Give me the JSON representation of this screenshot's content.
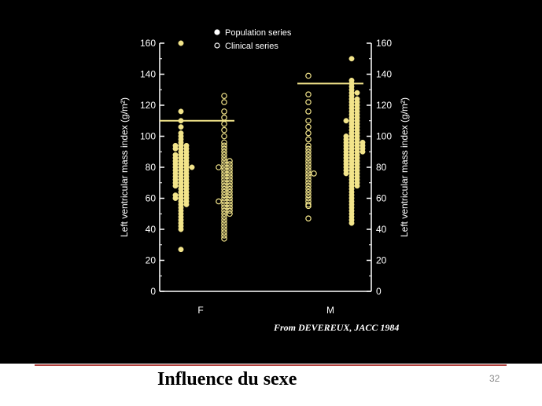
{
  "slide": {
    "title": "Influence du sexe",
    "page_number": "32",
    "credit": "From DEVEREUX, JACC 1984"
  },
  "colors": {
    "background": "#000000",
    "points": "#f2e48a",
    "reference_line": "#f2e48a",
    "axis": "#ffffff",
    "footer_rule": "#b0413e"
  },
  "chart_data": {
    "type": "scatter",
    "subtype": "dot-strip",
    "ylabel_left": "Left ventricular mass index (g/m²)",
    "ylabel_right": "Left ventricular mass index (g/m²)",
    "ylim": [
      0,
      160
    ],
    "yticks": [
      0,
      20,
      40,
      60,
      80,
      100,
      120,
      140,
      160
    ],
    "categories": [
      "F",
      "M"
    ],
    "legend": {
      "position": "top-center",
      "entries": [
        {
          "label": "Population series",
          "marker": "filled-circle"
        },
        {
          "label": "Clinical series",
          "marker": "open-circle"
        }
      ]
    },
    "reference_lines": [
      {
        "category": "F",
        "value": 110
      },
      {
        "category": "M",
        "value": 134
      }
    ],
    "series": [
      {
        "name": "Population series",
        "marker": "filled",
        "F": [
          160,
          116,
          110,
          106,
          102,
          100,
          98,
          96,
          94,
          94,
          94,
          92,
          92,
          92,
          90,
          90,
          88,
          88,
          88,
          86,
          86,
          86,
          84,
          84,
          84,
          82,
          82,
          82,
          80,
          80,
          80,
          80,
          78,
          78,
          78,
          76,
          76,
          76,
          74,
          74,
          74,
          72,
          72,
          72,
          70,
          70,
          70,
          68,
          68,
          68,
          66,
          66,
          64,
          64,
          62,
          62,
          62,
          60,
          60,
          60,
          58,
          58,
          56,
          56,
          54,
          52,
          50,
          48,
          46,
          44,
          42,
          40,
          27
        ],
        "M": [
          150,
          136,
          134,
          132,
          130,
          128,
          128,
          126,
          124,
          124,
          122,
          122,
          120,
          120,
          118,
          118,
          116,
          116,
          114,
          114,
          112,
          112,
          110,
          110,
          110,
          108,
          108,
          106,
          106,
          104,
          104,
          102,
          102,
          100,
          100,
          100,
          98,
          98,
          98,
          96,
          96,
          96,
          96,
          94,
          94,
          94,
          94,
          92,
          92,
          92,
          92,
          90,
          90,
          90,
          90,
          88,
          88,
          88,
          86,
          86,
          86,
          84,
          84,
          84,
          82,
          82,
          82,
          80,
          80,
          80,
          78,
          78,
          78,
          76,
          76,
          76,
          74,
          74,
          72,
          72,
          70,
          70,
          68,
          68,
          66,
          64,
          62,
          60,
          58,
          56,
          54,
          52,
          50,
          48,
          46,
          44
        ]
      },
      {
        "name": "Clinical series",
        "marker": "open",
        "F": [
          126,
          122,
          116,
          112,
          108,
          104,
          100,
          96,
          94,
          92,
          90,
          88,
          86,
          84,
          84,
          82,
          82,
          80,
          80,
          80,
          78,
          78,
          76,
          76,
          74,
          74,
          72,
          72,
          70,
          70,
          68,
          68,
          66,
          66,
          64,
          64,
          62,
          62,
          60,
          60,
          58,
          58,
          58,
          56,
          56,
          54,
          54,
          52,
          52,
          50,
          50,
          48,
          46,
          44,
          42,
          40,
          38,
          36,
          34
        ],
        "M": [
          139,
          127,
          122,
          116,
          110,
          106,
          102,
          98,
          94,
          92,
          90,
          88,
          86,
          84,
          82,
          80,
          78,
          76,
          76,
          74,
          72,
          70,
          68,
          66,
          64,
          62,
          60,
          58,
          56,
          55,
          47
        ]
      }
    ]
  }
}
